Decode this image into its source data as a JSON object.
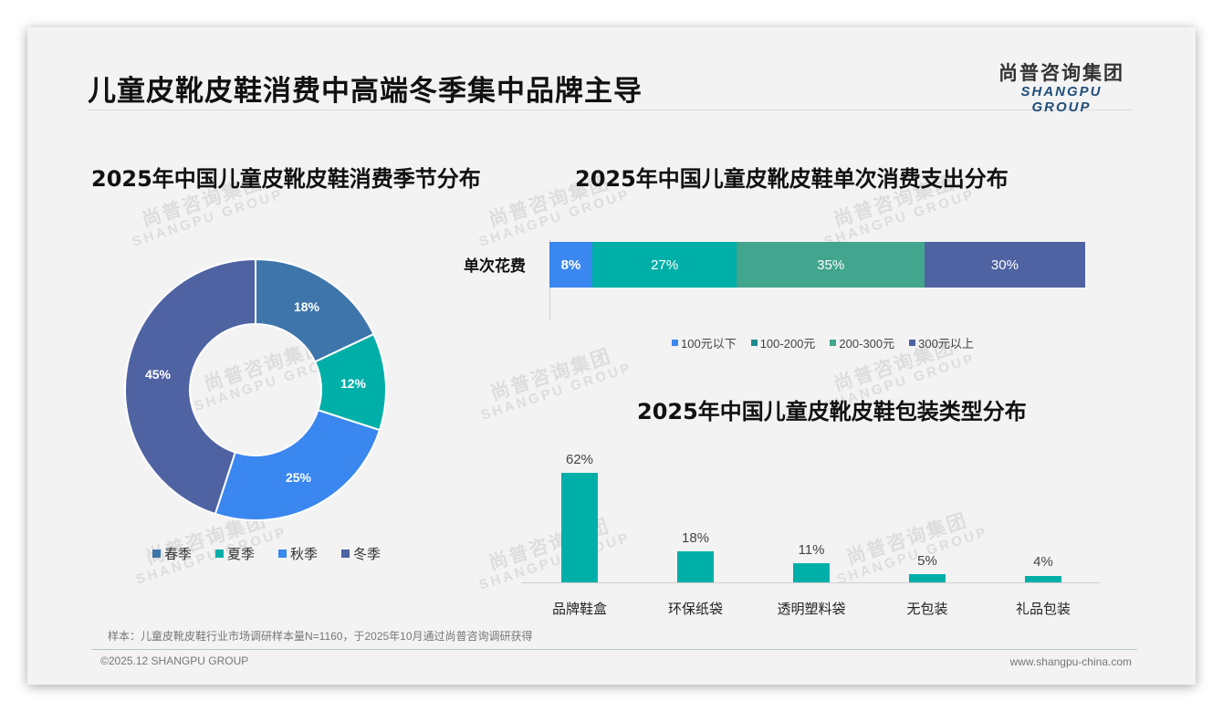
{
  "header": {
    "title": "儿童皮靴皮鞋消费中高端冬季集中品牌主导",
    "logo_cn": "尚普咨询集团",
    "logo_en": "SHANGPU GROUP"
  },
  "watermark": {
    "cn": "尚普咨询集团",
    "en": "SHANGPU GROUP"
  },
  "footer": {
    "note": "样本：儿童皮靴皮鞋行业市场调研样本量N=1160，于2025年10月通过尚普咨询调研获得",
    "copyright": "©2025.12 SHANGPU GROUP",
    "website": "www.shangpu-china.com"
  },
  "chart_data": [
    {
      "type": "pie",
      "subtype": "donut",
      "title": "2025年中国儿童皮靴皮鞋消费季节分布",
      "categories": [
        "春季",
        "夏季",
        "秋季",
        "冬季"
      ],
      "values": [
        18,
        12,
        25,
        45
      ],
      "labels": [
        "18%",
        "12%",
        "25%",
        "45%"
      ],
      "colors": [
        "#3e75ab",
        "#00b0a8",
        "#3a87f0",
        "#4f63a3"
      ],
      "legend_position": "bottom"
    },
    {
      "type": "bar",
      "subtype": "stacked-horizontal-100",
      "title": "2025年中国儿童皮靴皮鞋单次消费支出分布",
      "categories": [
        "单次花费"
      ],
      "series": [
        {
          "name": "100元以下",
          "values": [
            8
          ],
          "label": "8%",
          "color": "#3a87f0"
        },
        {
          "name": "100-200元",
          "values": [
            27
          ],
          "label": "27%",
          "color": "#00b0a8"
        },
        {
          "name": "200-300元",
          "values": [
            35
          ],
          "label": "35%",
          "color": "#42a58e"
        },
        {
          "name": "300元以上",
          "values": [
            30
          ],
          "label": "30%",
          "color": "#4f63a3"
        }
      ],
      "legend_position": "bottom"
    },
    {
      "type": "bar",
      "title": "2025年中国儿童皮靴皮鞋包装类型分布",
      "categories": [
        "品牌鞋盒",
        "环保纸袋",
        "透明塑料袋",
        "无包装",
        "礼品包装"
      ],
      "values": [
        62,
        18,
        11,
        5,
        4
      ],
      "labels": [
        "62%",
        "18%",
        "11%",
        "5%",
        "4%"
      ],
      "color": "#00b0a8",
      "xlabel": "",
      "ylabel": "",
      "grid": false
    }
  ]
}
